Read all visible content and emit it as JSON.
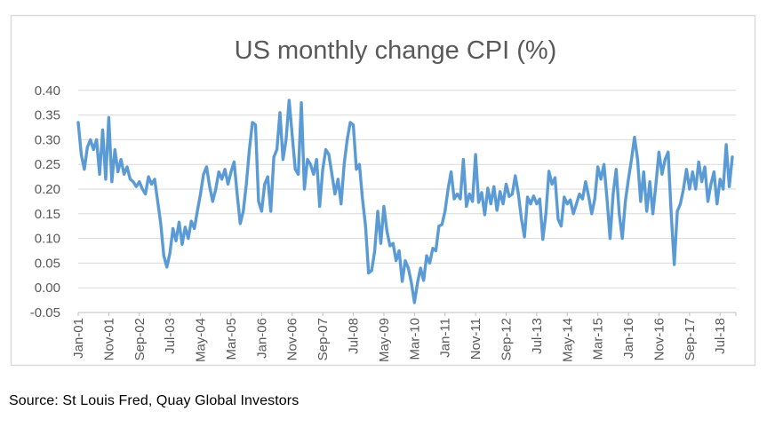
{
  "page": {
    "background": "#FFFFFF"
  },
  "chart": {
    "border_color": "#D9D9D9",
    "plot_background": "#FFFFFF",
    "gridline_color": "#D9D9D9",
    "axis_line_color": "#BFBFBF",
    "tick_mark_color": "#BFBFBF",
    "tick_label_color": "#595959",
    "title_color": "#595959",
    "series_color": "#5B9BD5"
  },
  "source_note": "Source: St Louis Fred, Quay Global Investors",
  "chart_data": {
    "type": "line",
    "title": "US monthly change CPI (%)",
    "xlabel": "",
    "ylabel": "",
    "x_unit": "month",
    "x_first": "Jan-01",
    "x_last": "Nov-18",
    "x_tick_every_n_points": 10,
    "x_tick_labels": [
      "Jan-01",
      "Nov-01",
      "Sep-02",
      "Jul-03",
      "May-04",
      "Mar-05",
      "Jan-06",
      "Nov-06",
      "Sep-07",
      "Jul-08",
      "May-09",
      "Mar-10",
      "Jan-11",
      "Nov-11",
      "Sep-12",
      "Jul-13",
      "May-14",
      "Mar-15",
      "Jan-16",
      "Nov-16",
      "Sep-17",
      "Jul-18"
    ],
    "ylim": [
      -0.05,
      0.4
    ],
    "y_tick_step": 0.05,
    "y_tick_labels": [
      "0.40",
      "0.35",
      "0.30",
      "0.25",
      "0.20",
      "0.15",
      "0.10",
      "0.05",
      "0.00",
      "-0.05"
    ],
    "grid": "horizontal",
    "legend": "none",
    "series": [
      {
        "name": "US monthly change CPI (%)",
        "values": [
          0.335,
          0.27,
          0.24,
          0.285,
          0.3,
          0.28,
          0.3,
          0.23,
          0.32,
          0.22,
          0.345,
          0.215,
          0.28,
          0.235,
          0.26,
          0.23,
          0.245,
          0.22,
          0.215,
          0.205,
          0.215,
          0.2,
          0.19,
          0.225,
          0.21,
          0.22,
          0.175,
          0.13,
          0.065,
          0.042,
          0.07,
          0.12,
          0.095,
          0.133,
          0.088,
          0.123,
          0.1,
          0.135,
          0.12,
          0.156,
          0.19,
          0.23,
          0.245,
          0.205,
          0.175,
          0.2,
          0.235,
          0.22,
          0.24,
          0.21,
          0.235,
          0.255,
          0.19,
          0.13,
          0.155,
          0.21,
          0.28,
          0.335,
          0.33,
          0.175,
          0.155,
          0.21,
          0.225,
          0.155,
          0.265,
          0.28,
          0.355,
          0.26,
          0.3,
          0.38,
          0.31,
          0.24,
          0.23,
          0.375,
          0.2,
          0.26,
          0.25,
          0.23,
          0.26,
          0.165,
          0.24,
          0.28,
          0.27,
          0.23,
          0.19,
          0.22,
          0.17,
          0.25,
          0.3,
          0.335,
          0.33,
          0.24,
          0.25,
          0.18,
          0.125,
          0.03,
          0.035,
          0.075,
          0.155,
          0.09,
          0.165,
          0.115,
          0.085,
          0.09,
          0.055,
          0.075,
          0.013,
          0.055,
          0.04,
          0.01,
          -0.03,
          0.01,
          0.04,
          0.015,
          0.065,
          0.05,
          0.08,
          0.075,
          0.125,
          0.128,
          0.155,
          0.2,
          0.235,
          0.18,
          0.19,
          0.18,
          0.26,
          0.165,
          0.19,
          0.175,
          0.27,
          0.173,
          0.193,
          0.148,
          0.202,
          0.17,
          0.205,
          0.157,
          0.195,
          0.17,
          0.21,
          0.185,
          0.19,
          0.227,
          0.19,
          0.14,
          0.103,
          0.184,
          0.17,
          0.186,
          0.17,
          0.18,
          0.098,
          0.15,
          0.236,
          0.21,
          0.223,
          0.139,
          0.125,
          0.184,
          0.17,
          0.178,
          0.15,
          0.17,
          0.19,
          0.18,
          0.215,
          0.185,
          0.15,
          0.18,
          0.245,
          0.22,
          0.25,
          0.18,
          0.1,
          0.19,
          0.24,
          0.15,
          0.1,
          0.175,
          0.22,
          0.26,
          0.305,
          0.26,
          0.175,
          0.235,
          0.155,
          0.215,
          0.15,
          0.21,
          0.275,
          0.23,
          0.26,
          0.275,
          0.15,
          0.047,
          0.155,
          0.17,
          0.2,
          0.24,
          0.2,
          0.235,
          0.2,
          0.255,
          0.215,
          0.245,
          0.175,
          0.21,
          0.235,
          0.17,
          0.22,
          0.2,
          0.29,
          0.205,
          0.265
        ]
      }
    ]
  }
}
